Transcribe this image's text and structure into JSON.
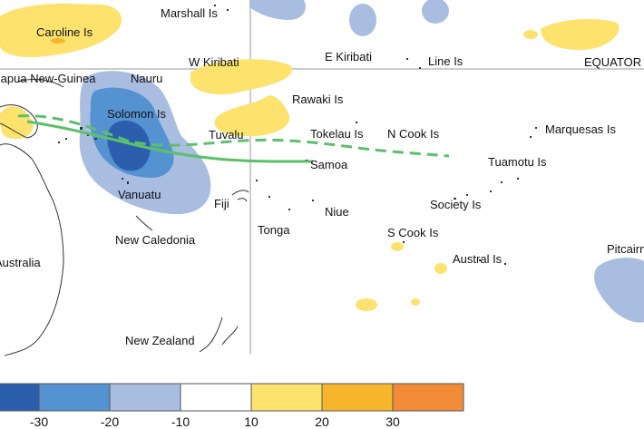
{
  "map": {
    "labels": {
      "caroline": "Caroline Is",
      "marshall": "Marshall Is",
      "png": "Papua New-Guinea",
      "nauru": "Nauru",
      "w_kiribati": "W Kiribati",
      "e_kiribati": "E Kiribati",
      "line": "Line Is",
      "equator": "EQUATOR",
      "solomon": "Solomon Is",
      "rawaki": "Rawaki Is",
      "tuvalu": "Tuvalu",
      "tokelau": "Tokelau Is",
      "n_cook": "N Cook Is",
      "marquesas": "Marquesas Is",
      "samoa": "Samoa",
      "tuamotu": "Tuamotu Is",
      "vanuatu": "Vanuatu",
      "fiji": "Fiji",
      "niue": "Niue",
      "society": "Society Is",
      "tonga": "Tonga",
      "s_cook": "S Cook Is",
      "new_caledonia": "New Caledonia",
      "austral": "Austral Is",
      "australia": "Australia",
      "pitcairn": "Pitcairn",
      "new_zealand": "New Zealand"
    }
  },
  "legend": {
    "ticks": [
      "-30",
      "-20",
      "-10",
      "10",
      "20",
      "30"
    ],
    "colors": [
      "#2b5fae",
      "#5592d1",
      "#a8bde0",
      "#ffffff",
      "#fde26e",
      "#f7b52b",
      "#f08c38"
    ]
  }
}
